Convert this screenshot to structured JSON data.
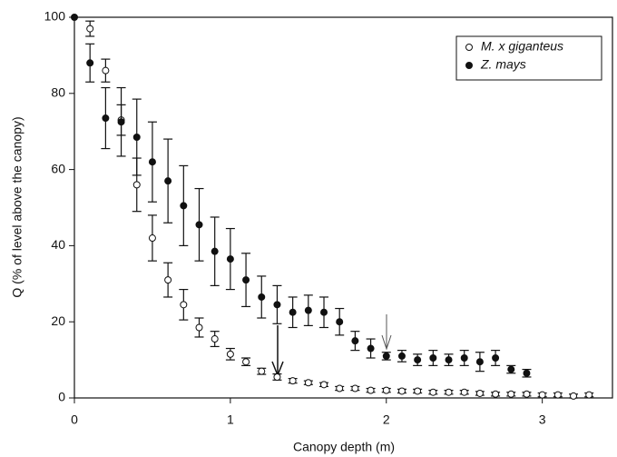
{
  "chart_data": {
    "type": "scatter",
    "xlabel": "Canopy depth (m)",
    "ylabel": "Q (% of level above the canopy)",
    "x": [
      0,
      0.1,
      0.2,
      0.3,
      0.4,
      0.5,
      0.6,
      0.7,
      0.8,
      0.9,
      1.0,
      1.1,
      1.2,
      1.3,
      1.4,
      1.5,
      1.6,
      1.7,
      1.8,
      1.9,
      2.0,
      2.1,
      2.2,
      2.3,
      2.4,
      2.5,
      2.6,
      2.7,
      2.8,
      2.9,
      3.0,
      3.1,
      3.2,
      3.3
    ],
    "series": [
      {
        "name": "M. x giganteus",
        "color": "#ffffff",
        "values": [
          null,
          97,
          86,
          73,
          56,
          42,
          31,
          24.5,
          18.5,
          15.5,
          11.5,
          9.5,
          7,
          5.5,
          4.5,
          4,
          3.5,
          2.5,
          2.5,
          2,
          2,
          1.8,
          1.8,
          1.5,
          1.5,
          1.5,
          1.2,
          1,
          1,
          1,
          0.8,
          0.8,
          0.5,
          0.8
        ],
        "errors": [
          null,
          2,
          3,
          4,
          7,
          6,
          4.5,
          4,
          2.5,
          2,
          1.5,
          1,
          0.8,
          0.8,
          0.6,
          0.5,
          0.5,
          0.5,
          0.5,
          0.5,
          0.5,
          0.5,
          0.5,
          0.5,
          0.5,
          0.5,
          0.5,
          0.5,
          0.5,
          0.5,
          0.5,
          0.5,
          0.5,
          0.5
        ]
      },
      {
        "name": "Z. mays",
        "color": "#111111",
        "values": [
          100,
          88,
          73.5,
          72.5,
          68.5,
          62,
          57,
          50.5,
          45.5,
          38.5,
          36.5,
          31,
          26.5,
          24.5,
          22.5,
          23,
          22.5,
          20,
          15,
          13,
          11,
          11,
          10,
          10.5,
          10,
          10.5,
          9.5,
          10.5,
          7.5,
          6.5,
          null,
          null,
          null,
          null
        ],
        "errors": [
          null,
          5,
          8,
          9,
          10,
          10.5,
          11,
          10.5,
          9.5,
          9,
          8,
          7,
          5.5,
          5,
          4,
          4,
          4,
          3.5,
          2.5,
          2.5,
          1,
          1.5,
          1.5,
          2,
          1.5,
          2,
          2.5,
          2,
          1,
          1,
          null,
          null,
          null,
          null
        ]
      }
    ],
    "xlim": [
      0,
      3.45
    ],
    "ylim": [
      0,
      100
    ],
    "xticks": [
      0,
      1,
      2,
      3
    ],
    "yticks": [
      0,
      20,
      40,
      60,
      80,
      100
    ],
    "legend": "upper right"
  }
}
